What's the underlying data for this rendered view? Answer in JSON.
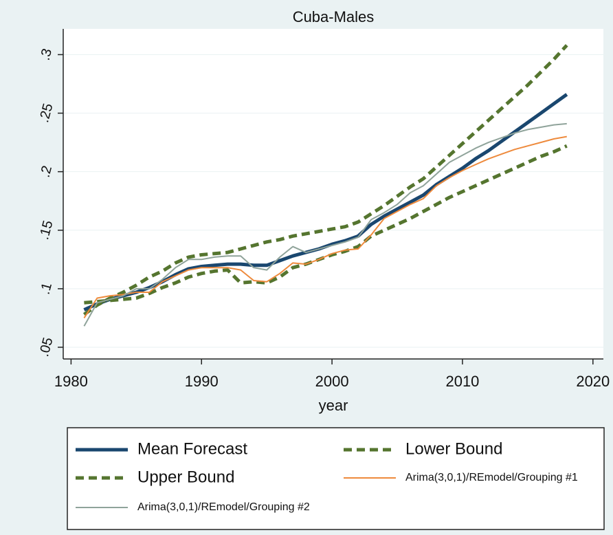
{
  "chart_data": {
    "type": "line",
    "title": "Cuba-Males",
    "xlabel": "year",
    "x": [
      1981,
      1982,
      1983,
      1984,
      1985,
      1986,
      1987,
      1988,
      1989,
      1990,
      1991,
      1992,
      1993,
      1994,
      1995,
      1996,
      1997,
      1998,
      1999,
      2000,
      2001,
      2002,
      2003,
      2004,
      2005,
      2006,
      2007,
      2008,
      2009,
      2010,
      2011,
      2012,
      2013,
      2014,
      2015,
      2016,
      2017,
      2018
    ],
    "xlim": [
      1979.4,
      2020.8
    ],
    "xticks": [
      1980,
      1990,
      2000,
      2010,
      2020
    ],
    "ylim": [
      0.04,
      0.322
    ],
    "yticks": [
      {
        "value": 0.05,
        "label": ".05"
      },
      {
        "value": 0.1,
        "label": ".1"
      },
      {
        "value": 0.15,
        "label": ".15"
      },
      {
        "value": 0.2,
        "label": ".2"
      },
      {
        "value": 0.25,
        "label": ".25"
      },
      {
        "value": 0.3,
        "label": ".3"
      }
    ],
    "grid": true,
    "series": [
      {
        "name": "Mean Forecast",
        "color": "#1a476f",
        "style": "solid",
        "width": 5,
        "values": [
          0.082,
          0.087,
          0.091,
          0.094,
          0.097,
          0.101,
          0.106,
          0.112,
          0.117,
          0.119,
          0.12,
          0.121,
          0.121,
          0.12,
          0.12,
          0.124,
          0.128,
          0.131,
          0.134,
          0.138,
          0.141,
          0.145,
          0.155,
          0.162,
          0.168,
          0.174,
          0.18,
          0.189,
          0.196,
          0.203,
          0.211,
          0.218,
          0.226,
          0.234,
          0.242,
          0.25,
          0.258,
          0.266
        ]
      },
      {
        "name": "Lower Bound",
        "color": "#55752f",
        "style": "dash",
        "width": 5,
        "values": [
          0.088,
          0.089,
          0.09,
          0.091,
          0.092,
          0.096,
          0.101,
          0.105,
          0.11,
          0.113,
          0.115,
          0.116,
          0.105,
          0.106,
          0.105,
          0.11,
          0.118,
          0.121,
          0.125,
          0.129,
          0.132,
          0.136,
          0.145,
          0.15,
          0.155,
          0.16,
          0.166,
          0.172,
          0.178,
          0.183,
          0.188,
          0.193,
          0.198,
          0.203,
          0.208,
          0.213,
          0.217,
          0.222
        ]
      },
      {
        "name": "Upper Bound",
        "color": "#55752f",
        "style": "dash",
        "width": 5,
        "values": [
          0.078,
          0.086,
          0.092,
          0.097,
          0.103,
          0.11,
          0.115,
          0.122,
          0.127,
          0.129,
          0.13,
          0.131,
          0.134,
          0.137,
          0.14,
          0.142,
          0.145,
          0.147,
          0.149,
          0.151,
          0.153,
          0.157,
          0.164,
          0.171,
          0.179,
          0.187,
          0.194,
          0.204,
          0.214,
          0.224,
          0.234,
          0.244,
          0.254,
          0.264,
          0.274,
          0.285,
          0.296,
          0.308
        ]
      },
      {
        "name": "Arima(3,0,1)/REmodel/Grouping #1",
        "color": "#ee8a3c",
        "style": "solid",
        "width": 2,
        "values": [
          0.075,
          0.092,
          0.094,
          0.095,
          0.097,
          0.097,
          0.106,
          0.111,
          0.116,
          0.118,
          0.118,
          0.118,
          0.116,
          0.107,
          0.106,
          0.113,
          0.122,
          0.121,
          0.125,
          0.13,
          0.133,
          0.134,
          0.146,
          0.16,
          0.166,
          0.172,
          0.177,
          0.188,
          0.195,
          0.201,
          0.206,
          0.211,
          0.215,
          0.219,
          0.222,
          0.225,
          0.228,
          0.23
        ]
      },
      {
        "name": "Arima(3,0,1)/REmodel/Grouping #2",
        "color": "#8fa39a",
        "style": "solid",
        "width": 2,
        "values": [
          0.068,
          0.088,
          0.091,
          0.094,
          0.1,
          0.1,
          0.108,
          0.118,
          0.125,
          0.125,
          0.127,
          0.128,
          0.128,
          0.118,
          0.116,
          0.127,
          0.136,
          0.131,
          0.134,
          0.137,
          0.14,
          0.144,
          0.159,
          0.165,
          0.172,
          0.182,
          0.188,
          0.198,
          0.208,
          0.214,
          0.22,
          0.225,
          0.229,
          0.233,
          0.236,
          0.238,
          0.24,
          0.241
        ]
      }
    ]
  }
}
